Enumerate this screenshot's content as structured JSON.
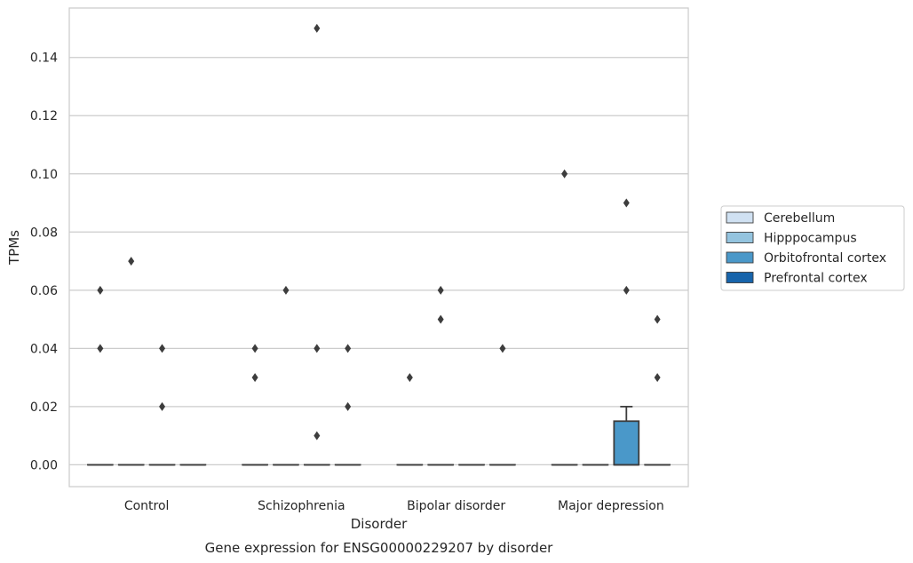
{
  "chart_data": {
    "type": "box",
    "title": "",
    "caption": "Gene expression for ENSG00000229207 by disorder",
    "xlabel": "Disorder",
    "ylabel": "TPMs",
    "ylim": [
      -0.0075,
      0.157
    ],
    "yticks": [
      0.0,
      0.02,
      0.04,
      0.06,
      0.08,
      0.1,
      0.12,
      0.14
    ],
    "ytick_labels": [
      "0.00",
      "0.02",
      "0.04",
      "0.06",
      "0.08",
      "0.10",
      "0.12",
      "0.14"
    ],
    "categories": [
      "Control",
      "Schizophrenia",
      "Bipolar disorder",
      "Major depression"
    ],
    "grid": "horizontal",
    "legend_position": "right",
    "series": [
      {
        "name": "Cerebellum",
        "color": "#d0e1f2",
        "boxes": [
          {
            "category": "Control",
            "q1": 0,
            "median": 0,
            "q3": 0,
            "whisker_low": 0,
            "whisker_high": 0,
            "outliers": [
              0.06,
              0.04
            ]
          },
          {
            "category": "Schizophrenia",
            "q1": 0,
            "median": 0,
            "q3": 0,
            "whisker_low": 0,
            "whisker_high": 0,
            "outliers": [
              0.04,
              0.03
            ]
          },
          {
            "category": "Bipolar disorder",
            "q1": 0,
            "median": 0,
            "q3": 0,
            "whisker_low": 0,
            "whisker_high": 0,
            "outliers": [
              0.03
            ]
          },
          {
            "category": "Major depression",
            "q1": 0,
            "median": 0,
            "q3": 0,
            "whisker_low": 0,
            "whisker_high": 0,
            "outliers": [
              0.1
            ]
          }
        ]
      },
      {
        "name": "Hipppocampus",
        "color": "#94c4df",
        "boxes": [
          {
            "category": "Control",
            "q1": 0,
            "median": 0,
            "q3": 0,
            "whisker_low": 0,
            "whisker_high": 0,
            "outliers": [
              0.07
            ]
          },
          {
            "category": "Schizophrenia",
            "q1": 0,
            "median": 0,
            "q3": 0,
            "whisker_low": 0,
            "whisker_high": 0,
            "outliers": [
              0.06
            ]
          },
          {
            "category": "Bipolar disorder",
            "q1": 0,
            "median": 0,
            "q3": 0,
            "whisker_low": 0,
            "whisker_high": 0,
            "outliers": [
              0.06,
              0.05
            ]
          },
          {
            "category": "Major depression",
            "q1": 0,
            "median": 0,
            "q3": 0,
            "whisker_low": 0,
            "whisker_high": 0,
            "outliers": []
          }
        ]
      },
      {
        "name": "Orbitofrontal cortex",
        "color": "#4a98c9",
        "boxes": [
          {
            "category": "Control",
            "q1": 0,
            "median": 0,
            "q3": 0,
            "whisker_low": 0,
            "whisker_high": 0,
            "outliers": [
              0.04,
              0.02
            ]
          },
          {
            "category": "Schizophrenia",
            "q1": 0,
            "median": 0,
            "q3": 0,
            "whisker_low": 0,
            "whisker_high": 0,
            "outliers": [
              0.15,
              0.04,
              0.01
            ]
          },
          {
            "category": "Bipolar disorder",
            "q1": 0,
            "median": 0,
            "q3": 0,
            "whisker_low": 0,
            "whisker_high": 0,
            "outliers": []
          },
          {
            "category": "Major depression",
            "q1": 0,
            "median": 0,
            "q3": 0.015,
            "whisker_low": 0,
            "whisker_high": 0.02,
            "outliers": [
              0.09,
              0.06
            ]
          }
        ]
      },
      {
        "name": "Prefrontal cortex",
        "color": "#1764ab",
        "boxes": [
          {
            "category": "Control",
            "q1": 0,
            "median": 0,
            "q3": 0,
            "whisker_low": 0,
            "whisker_high": 0,
            "outliers": []
          },
          {
            "category": "Schizophrenia",
            "q1": 0,
            "median": 0,
            "q3": 0,
            "whisker_low": 0,
            "whisker_high": 0,
            "outliers": [
              0.04,
              0.02
            ]
          },
          {
            "category": "Bipolar disorder",
            "q1": 0,
            "median": 0,
            "q3": 0,
            "whisker_low": 0,
            "whisker_high": 0,
            "outliers": [
              0.04
            ]
          },
          {
            "category": "Major depression",
            "q1": 0,
            "median": 0,
            "q3": 0,
            "whisker_low": 0,
            "whisker_high": 0,
            "outliers": [
              0.05,
              0.03
            ]
          }
        ]
      }
    ]
  }
}
